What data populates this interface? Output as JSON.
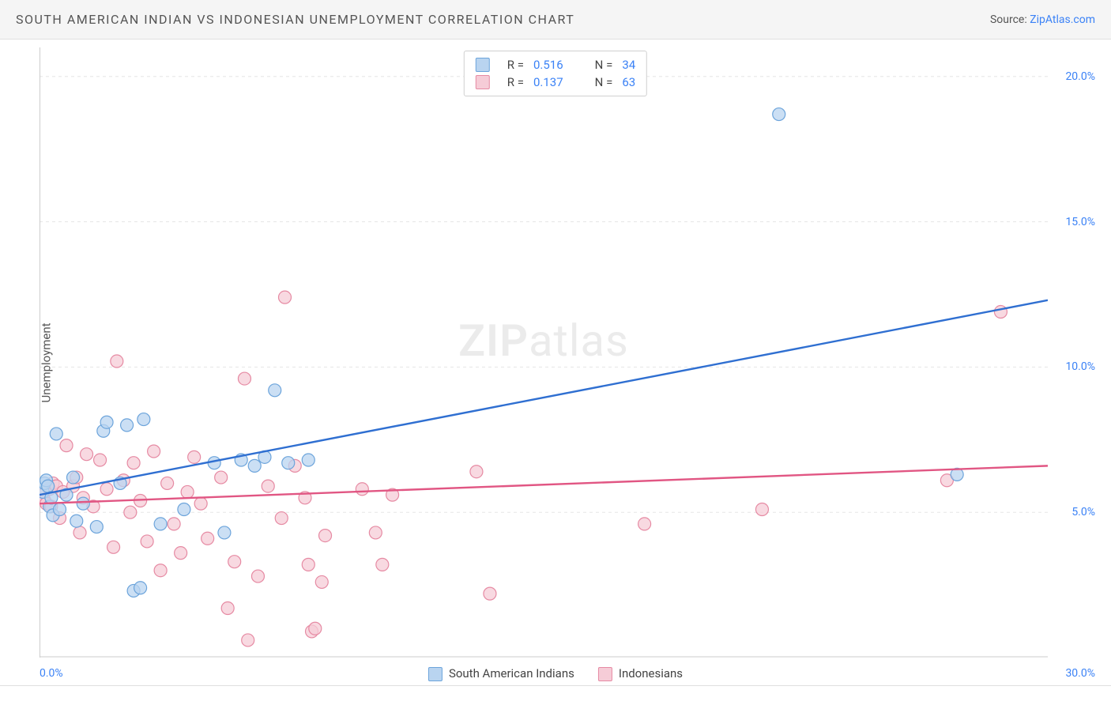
{
  "header": {
    "title": "SOUTH AMERICAN INDIAN VS INDONESIAN UNEMPLOYMENT CORRELATION CHART",
    "source_prefix": "Source: ",
    "source_name": "ZipAtlas.com"
  },
  "watermark": {
    "zip": "ZIP",
    "atlas": "atlas"
  },
  "chart": {
    "type": "scatter",
    "ylabel": "Unemployment",
    "xlim": [
      0,
      30
    ],
    "ylim": [
      0,
      21
    ],
    "yticks": [
      5,
      10,
      15,
      20
    ],
    "ytick_labels": [
      "5.0%",
      "10.0%",
      "15.0%",
      "20.0%"
    ],
    "x_zero_label": "0.0%",
    "x_max_label": "30.0%",
    "background_color": "#ffffff",
    "grid_color": "#e5e5e5",
    "axis_color": "#cccccc",
    "marker_radius": 8,
    "marker_stroke_width": 1.2,
    "line_width": 2.4,
    "series": {
      "sai": {
        "label": "South American Indians",
        "fill": "#b9d4f0",
        "stroke": "#6ca4db",
        "line_color": "#2f6fd1",
        "r_value": "0.516",
        "n_value": "34",
        "trend": {
          "x1": 0,
          "y1": 5.6,
          "x2": 30,
          "y2": 12.3
        },
        "points": [
          [
            0.1,
            5.7
          ],
          [
            0.15,
            6.0
          ],
          [
            0.2,
            6.1
          ],
          [
            0.25,
            5.9
          ],
          [
            0.3,
            5.2
          ],
          [
            0.35,
            5.5
          ],
          [
            0.4,
            4.9
          ],
          [
            0.5,
            7.7
          ],
          [
            0.6,
            5.1
          ],
          [
            0.8,
            5.6
          ],
          [
            1.0,
            6.2
          ],
          [
            1.1,
            4.7
          ],
          [
            1.3,
            5.3
          ],
          [
            1.7,
            4.5
          ],
          [
            1.9,
            7.8
          ],
          [
            2.0,
            8.1
          ],
          [
            2.4,
            6.0
          ],
          [
            2.6,
            8.0
          ],
          [
            2.8,
            2.3
          ],
          [
            3.0,
            2.4
          ],
          [
            3.1,
            8.2
          ],
          [
            3.6,
            4.6
          ],
          [
            4.3,
            5.1
          ],
          [
            5.2,
            6.7
          ],
          [
            5.5,
            4.3
          ],
          [
            6.0,
            6.8
          ],
          [
            6.4,
            6.6
          ],
          [
            6.7,
            6.9
          ],
          [
            7.0,
            9.2
          ],
          [
            7.4,
            6.7
          ],
          [
            8.0,
            6.8
          ],
          [
            22.0,
            18.7
          ],
          [
            27.3,
            6.3
          ]
        ]
      },
      "indo": {
        "label": "Indonesians",
        "fill": "#f6ccd7",
        "stroke": "#e68aa3",
        "line_color": "#e15683",
        "r_value": "0.137",
        "n_value": "63",
        "trend": {
          "x1": 0,
          "y1": 5.3,
          "x2": 30,
          "y2": 6.6
        },
        "points": [
          [
            0.1,
            5.6
          ],
          [
            0.15,
            5.4
          ],
          [
            0.2,
            5.3
          ],
          [
            0.3,
            5.8
          ],
          [
            0.35,
            5.2
          ],
          [
            0.4,
            6.0
          ],
          [
            0.5,
            5.9
          ],
          [
            0.6,
            4.8
          ],
          [
            0.7,
            5.7
          ],
          [
            0.8,
            7.3
          ],
          [
            1.0,
            5.9
          ],
          [
            1.1,
            6.2
          ],
          [
            1.2,
            4.3
          ],
          [
            1.3,
            5.5
          ],
          [
            1.4,
            7.0
          ],
          [
            1.6,
            5.2
          ],
          [
            1.8,
            6.8
          ],
          [
            2.0,
            5.8
          ],
          [
            2.2,
            3.8
          ],
          [
            2.3,
            10.2
          ],
          [
            2.5,
            6.1
          ],
          [
            2.7,
            5.0
          ],
          [
            2.8,
            6.7
          ],
          [
            3.0,
            5.4
          ],
          [
            3.2,
            4.0
          ],
          [
            3.4,
            7.1
          ],
          [
            3.6,
            3.0
          ],
          [
            3.8,
            6.0
          ],
          [
            4.0,
            4.6
          ],
          [
            4.2,
            3.6
          ],
          [
            4.4,
            5.7
          ],
          [
            4.6,
            6.9
          ],
          [
            4.8,
            5.3
          ],
          [
            5.0,
            4.1
          ],
          [
            5.4,
            6.2
          ],
          [
            5.6,
            1.7
          ],
          [
            5.8,
            3.3
          ],
          [
            6.1,
            9.6
          ],
          [
            6.2,
            0.6
          ],
          [
            6.5,
            2.8
          ],
          [
            6.8,
            5.9
          ],
          [
            7.2,
            4.8
          ],
          [
            7.3,
            12.4
          ],
          [
            7.6,
            6.6
          ],
          [
            7.9,
            5.5
          ],
          [
            8.0,
            3.2
          ],
          [
            8.1,
            0.9
          ],
          [
            8.2,
            1.0
          ],
          [
            8.4,
            2.6
          ],
          [
            8.5,
            4.2
          ],
          [
            9.6,
            5.8
          ],
          [
            10.0,
            4.3
          ],
          [
            10.2,
            3.2
          ],
          [
            10.5,
            5.6
          ],
          [
            13.0,
            6.4
          ],
          [
            13.4,
            2.2
          ],
          [
            18.0,
            4.6
          ],
          [
            21.5,
            5.1
          ],
          [
            27.0,
            6.1
          ],
          [
            28.6,
            11.9
          ]
        ]
      }
    },
    "bottom_legend": [
      {
        "key": "sai"
      },
      {
        "key": "indo"
      }
    ],
    "top_legend_label_r": "R =",
    "top_legend_label_n": "N ="
  }
}
